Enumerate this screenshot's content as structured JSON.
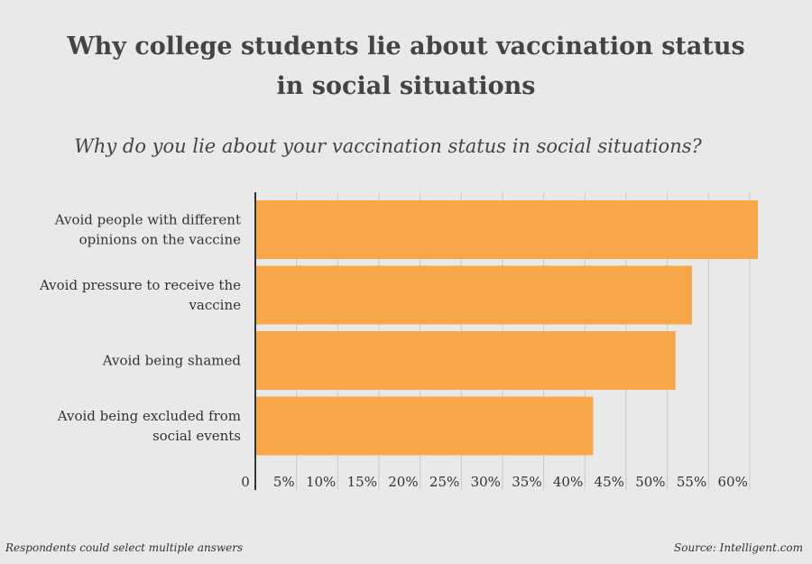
{
  "title_lines": [
    "Why college students lie about vaccination status",
    "in social situations"
  ],
  "subtitle": "Why do you lie about your vaccination status in social situations?",
  "footnote": "Respondents could select multiple answers",
  "source": "Source: Intelligent.com",
  "colors": {
    "bar": "#f7a74a",
    "grid": "#c9c9c9",
    "axis": "#333333",
    "background": "#e9e9e9"
  },
  "chart_data": {
    "type": "bar",
    "orientation": "horizontal",
    "categories": [
      [
        "Avoid people with different",
        "opinions on the vaccine"
      ],
      [
        "Avoid pressure to receive the",
        "vaccine"
      ],
      [
        "Avoid being shamed"
      ],
      [
        "Avoid being excluded from",
        "social events"
      ]
    ],
    "values": [
      61,
      53,
      51,
      41
    ],
    "xlim": [
      0,
      61
    ],
    "xticks": [
      "0",
      "5%",
      "10%",
      "15%",
      "20%",
      "25%",
      "30%",
      "35%",
      "40%",
      "45%",
      "50%",
      "55%",
      "60%"
    ],
    "grid": true,
    "legend": "none"
  }
}
